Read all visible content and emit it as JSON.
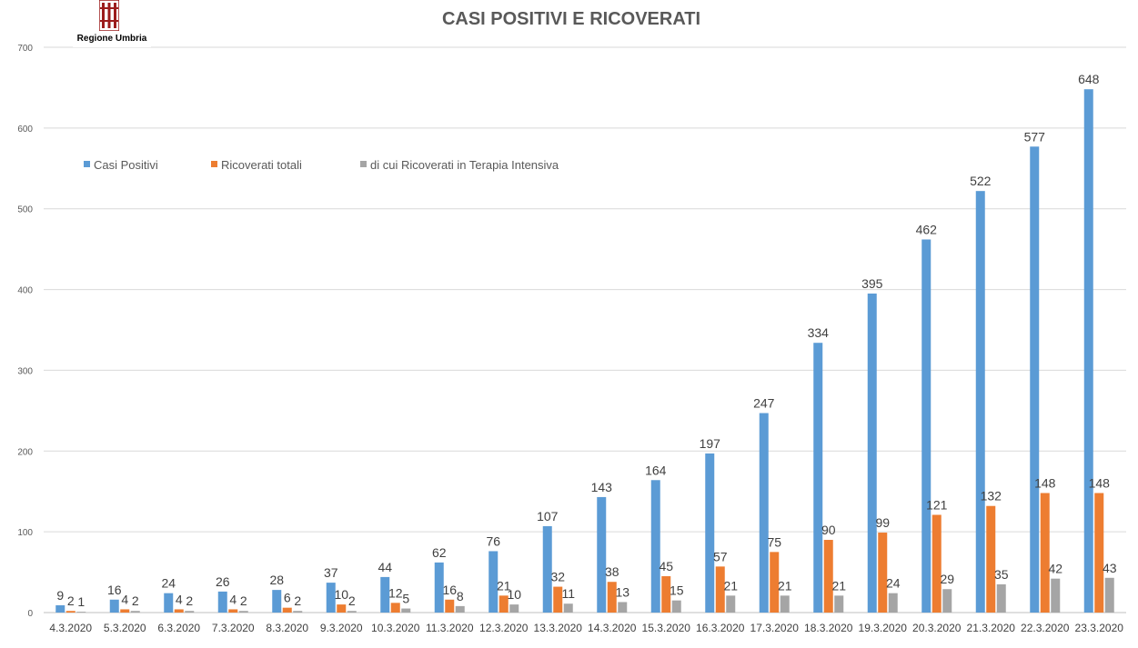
{
  "logo": {
    "text": "Regione Umbria"
  },
  "chart_data": {
    "type": "bar",
    "title": "CASI POSITIVI E RICOVERATI",
    "xlabel": "",
    "ylabel": "",
    "ylim": [
      0,
      700
    ],
    "yticks": [
      0,
      100,
      200,
      300,
      400,
      500,
      600,
      700
    ],
    "grid": true,
    "legend_position": "top-left",
    "categories": [
      "4.3.2020",
      "5.3.2020",
      "6.3.2020",
      "7.3.2020",
      "8.3.2020",
      "9.3.2020",
      "10.3.2020",
      "11.3.2020",
      "12.3.2020",
      "13.3.2020",
      "14.3.2020",
      "15.3.2020",
      "16.3.2020",
      "17.3.2020",
      "18.3.2020",
      "19.3.2020",
      "20.3.2020",
      "21.3.2020",
      "22.3.2020",
      "23.3.2020"
    ],
    "series": [
      {
        "name": "Casi Positivi",
        "color": "#5B9BD5",
        "values": [
          9,
          16,
          24,
          26,
          28,
          37,
          44,
          62,
          76,
          107,
          143,
          164,
          197,
          247,
          334,
          395,
          462,
          522,
          577,
          648
        ]
      },
      {
        "name": "Ricoverati totali",
        "color": "#ED7D31",
        "values": [
          2,
          4,
          4,
          4,
          6,
          10,
          12,
          16,
          21,
          32,
          38,
          45,
          57,
          75,
          90,
          99,
          121,
          132,
          148,
          148
        ]
      },
      {
        "name": "di cui Ricoverati in Terapia Intensiva",
        "color": "#A5A5A5",
        "values": [
          1,
          2,
          2,
          2,
          2,
          2,
          5,
          8,
          10,
          11,
          13,
          15,
          21,
          21,
          21,
          24,
          29,
          35,
          42,
          43
        ]
      }
    ]
  }
}
